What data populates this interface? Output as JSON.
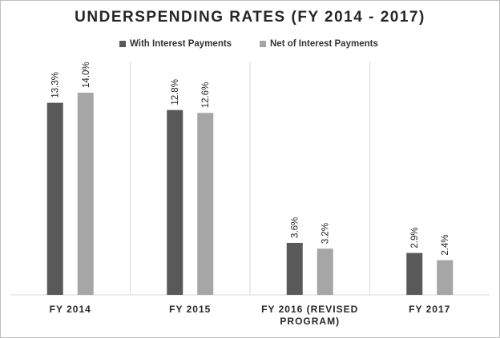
{
  "chart_data": {
    "type": "bar",
    "title": "UNDERSPENDING RATES (FY 2014 - 2017)",
    "xlabel": "",
    "ylabel": "",
    "categories": [
      [
        "FY 2014"
      ],
      [
        "FY 2015"
      ],
      [
        "FY 2016 (REVISED",
        "PROGRAM)"
      ],
      [
        "FY 2017"
      ]
    ],
    "series": [
      {
        "name": "With Interest Payments",
        "color": "#595959",
        "values": [
          13.3,
          12.8,
          3.6,
          2.9
        ],
        "labels": [
          "13.3%",
          "12.8%",
          "3.6%",
          "2.9%"
        ]
      },
      {
        "name": "Net of Interest Payments",
        "color": "#a6a6a6",
        "values": [
          14.0,
          12.6,
          3.2,
          2.4
        ],
        "labels": [
          "14.0%",
          "12.6%",
          "3.2%",
          "2.4%"
        ]
      }
    ],
    "ylim": [
      0,
      16
    ],
    "grid": "vertical separators between categories",
    "legend": "top-center"
  }
}
